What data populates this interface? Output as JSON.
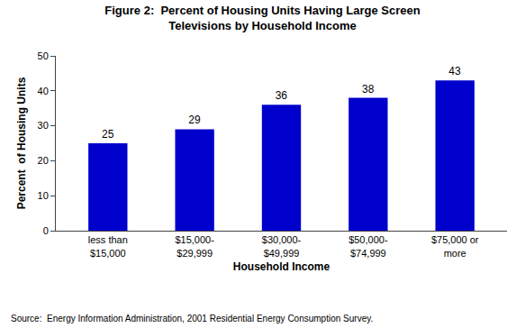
{
  "chart_data": {
    "type": "bar",
    "title": "Figure 2:  Percent of Housing Units Having Large Screen\nTelevisions by Household Income",
    "categories": [
      "less than\n$15,000",
      "$15,000-\n$29,999",
      "$30,000-\n$49,999",
      "$50,000-\n$74,999",
      "$75,000 or\nmore"
    ],
    "values": [
      25,
      29,
      36,
      38,
      43
    ],
    "color": "#0000CC",
    "xlabel": "Household Income",
    "ylabel": "Percent  of Housing Units",
    "ylim": [
      0,
      50
    ],
    "yticks": [
      0,
      10,
      20,
      30,
      40,
      50
    ],
    "data_labels": true,
    "grid": false,
    "annotations": [
      "Source:  Energy Information Administration, 2001 Residential Energy Consumption Survey."
    ]
  }
}
